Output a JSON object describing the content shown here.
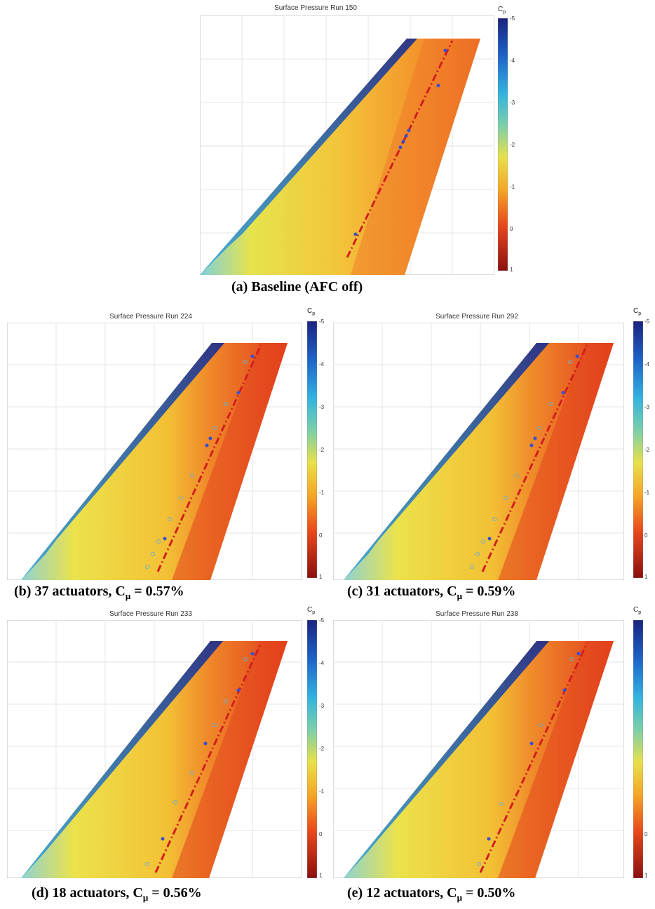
{
  "colorbar": {
    "label_main": "C",
    "label_sub": "p",
    "ticks": [
      "-5",
      "-4",
      "-3",
      "-2",
      "-1",
      "0",
      "1"
    ]
  },
  "panels": [
    {
      "id": "a",
      "title": "Surface Pressure Run 150",
      "caption": "(a) Baseline (AFC off)",
      "caption_cmu": ""
    },
    {
      "id": "b",
      "title": "Surface Pressure Run 224",
      "caption_prefix": "(b) 37 actuators, C",
      "caption_sub": "μ",
      "caption_suffix": " = 0.57%"
    },
    {
      "id": "c",
      "title": "Surface Pressure Run 292",
      "caption_prefix": "(c) 31 actuators, C",
      "caption_sub": "μ",
      "caption_suffix": " = 0.59%"
    },
    {
      "id": "d",
      "title": "Surface Pressure Run 233",
      "caption_prefix": "(d) 18 actuators, C",
      "caption_sub": "μ",
      "caption_suffix": " = 0.56%"
    },
    {
      "id": "e",
      "title": "Surface Pressure Run 238",
      "caption_prefix": "(e) 12 actuators, C",
      "caption_sub": "μ",
      "caption_suffix": " = 0.50%"
    }
  ]
}
